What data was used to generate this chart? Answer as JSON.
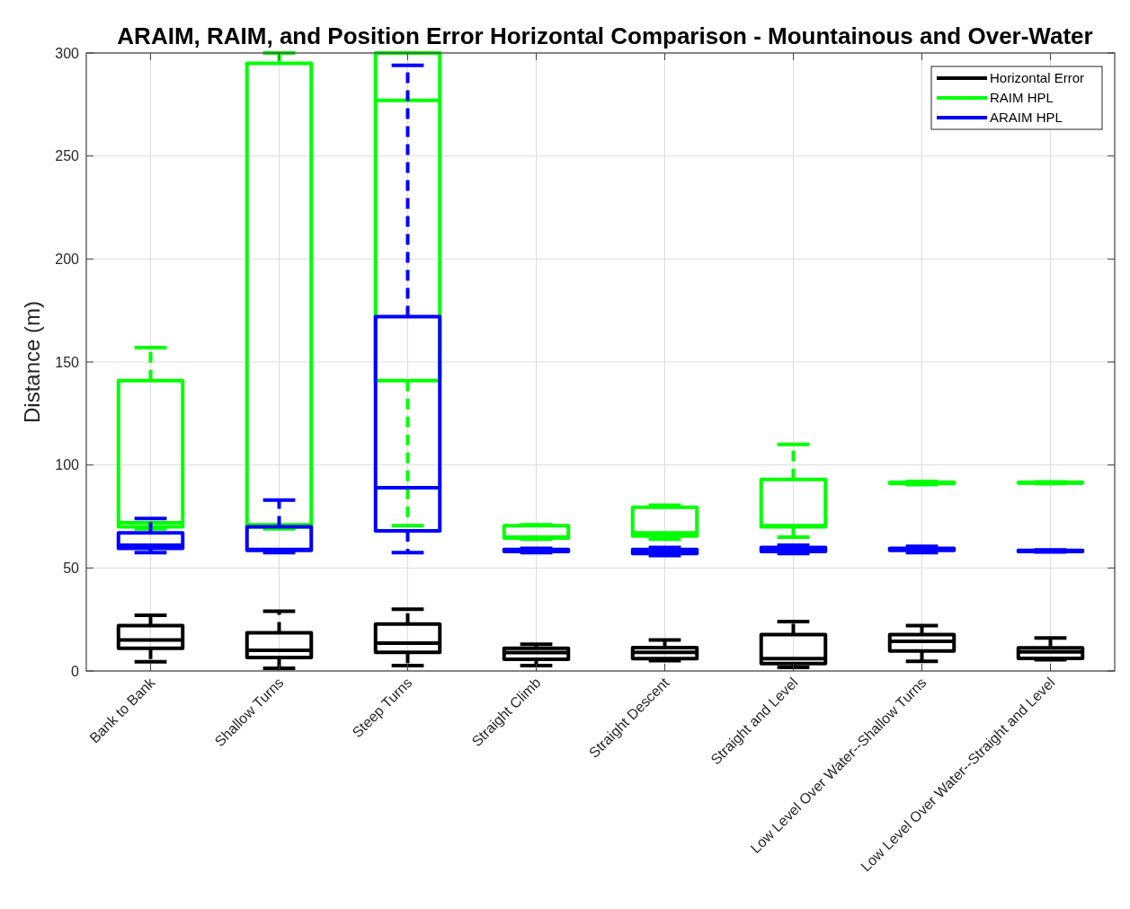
{
  "chart_data": {
    "type": "box",
    "title": "ARAIM, RAIM, and Position Error Horizontal Comparison - Mountainous and Over-Water",
    "ylabel": "Distance (m)",
    "categories": [
      "Bank to Bank",
      "Shallow Turns",
      "Steep Turns",
      "Straight Climb",
      "Straight Descent",
      "Straight and Level",
      "Low Level Over Water--Shallow Turns",
      "Low Level Over Water--Straight and Level"
    ],
    "ylim": [
      0,
      300
    ],
    "yticks": [
      0,
      50,
      100,
      150,
      200,
      250,
      300
    ],
    "grid": true,
    "legend": "top right",
    "line_style": "dashed",
    "series": [
      {
        "name": "Horizontal Error",
        "color": "#000000",
        "boxes": [
          {
            "low": 4.5,
            "q1": 11,
            "median": 15,
            "q3": 22,
            "high": 27
          },
          {
            "low": 1.3,
            "q1": 6.5,
            "median": 10,
            "q3": 18.5,
            "high": 29
          },
          {
            "low": 2.6,
            "q1": 9,
            "median": 13.5,
            "q3": 22.8,
            "high": 30
          },
          {
            "low": 2.6,
            "q1": 5.7,
            "median": 8.9,
            "q3": 11,
            "high": 13
          },
          {
            "low": 5,
            "q1": 6,
            "median": 9,
            "q3": 11.3,
            "high": 15
          },
          {
            "low": 1.7,
            "q1": 3.6,
            "median": 6,
            "q3": 17.7,
            "high": 24
          },
          {
            "low": 4.7,
            "q1": 9.7,
            "median": 14.4,
            "q3": 17.7,
            "high": 22
          },
          {
            "low": 5.5,
            "q1": 6.1,
            "median": 9.3,
            "q3": 11.2,
            "high": 16
          }
        ]
      },
      {
        "name": "RAIM HPL",
        "color": "#00ff00",
        "boxes": [
          {
            "low": 69,
            "q1": 70,
            "median": 72,
            "q3": 141,
            "high": 157
          },
          {
            "low": 69,
            "q1": 70,
            "median": 71,
            "q3": 295,
            "high": 300
          },
          {
            "low": 70.5,
            "q1": 141,
            "median": 277,
            "q3": 300,
            "high": 300
          },
          {
            "low": 64,
            "q1": 64.5,
            "median": 65,
            "q3": 70.5,
            "high": 71
          },
          {
            "low": 64,
            "q1": 65.5,
            "median": 67,
            "q3": 79.5,
            "high": 80.5
          },
          {
            "low": 65,
            "q1": 70,
            "median": 70.5,
            "q3": 93,
            "high": 110
          },
          {
            "low": 90.5,
            "q1": 91,
            "median": 91.3,
            "q3": 91.6,
            "high": 92
          },
          {
            "low": 91,
            "q1": 91.2,
            "median": 91.4,
            "q3": 91.6,
            "high": 91.8
          }
        ]
      },
      {
        "name": "ARAIM HPL",
        "color": "#0000ff",
        "boxes": [
          {
            "low": 57.5,
            "q1": 59.5,
            "median": 61,
            "q3": 67,
            "high": 74
          },
          {
            "low": 57.5,
            "q1": 58.5,
            "median": 59,
            "q3": 70,
            "high": 83
          },
          {
            "low": 57.5,
            "q1": 68,
            "median": 89,
            "q3": 172,
            "high": 294
          },
          {
            "low": 57.5,
            "q1": 58,
            "median": 58.5,
            "q3": 59,
            "high": 59.5
          },
          {
            "low": 56,
            "q1": 57,
            "median": 58,
            "q3": 59,
            "high": 60
          },
          {
            "low": 57,
            "q1": 58,
            "median": 59,
            "q3": 60,
            "high": 61
          },
          {
            "low": 57.5,
            "q1": 58.5,
            "median": 59,
            "q3": 59.5,
            "high": 60.5
          },
          {
            "low": 57.8,
            "q1": 58,
            "median": 58.3,
            "q3": 58.5,
            "high": 58.8
          }
        ]
      }
    ]
  }
}
